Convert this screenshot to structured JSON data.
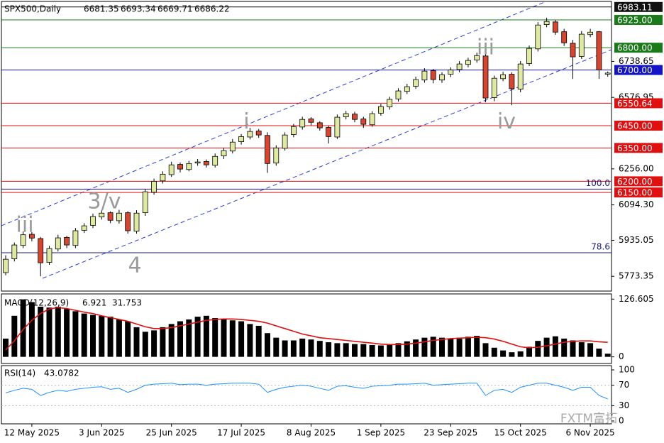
{
  "chart_data": [
    {
      "type": "candlestick",
      "title": "SPX500,Daily",
      "header_values": [
        6681.35,
        6693.34,
        6669.71,
        6686.22
      ],
      "x_ticks": [
        {
          "value": 3,
          "label": "12 May 2025"
        },
        {
          "value": 11,
          "label": "3 Jun 2025"
        },
        {
          "value": 19,
          "label": "25 Jun 2025"
        },
        {
          "value": 27,
          "label": "17 Jul 2025"
        },
        {
          "value": 35,
          "label": "8 Aug 2025"
        },
        {
          "value": 43,
          "label": "1 Sep 2025"
        },
        {
          "value": 51,
          "label": "23 Sep 2025"
        },
        {
          "value": 59,
          "label": "15 Oct 2025"
        },
        {
          "value": 67,
          "label": "6 Nov 2025"
        }
      ],
      "open": [
        5790,
        5852,
        5912,
        5962,
        5943,
        5836,
        5896,
        5948,
        5912,
        5980,
        6002,
        6040,
        6059,
        6023,
        6059,
        5976,
        6059,
        6151,
        6202,
        6230,
        6276,
        6253,
        6282,
        6289,
        6272,
        6314,
        6336,
        6378,
        6399,
        6426,
        6406,
        6282,
        6348,
        6410,
        6444,
        6480,
        6463,
        6442,
        6399,
        6490,
        6502,
        6480,
        6454,
        6506,
        6534,
        6570,
        6604,
        6627,
        6655,
        6697,
        6655,
        6681,
        6702,
        6725,
        6745,
        6763,
        6576,
        6661,
        6681,
        6614,
        6729,
        6795,
        6904,
        6916,
        6872,
        6820,
        6761,
        6859,
        6872,
        6681.35
      ],
      "high": [
        5868,
        5925,
        5975,
        5972,
        5950,
        5910,
        5960,
        5955,
        5990,
        6012,
        6055,
        6070,
        6065,
        6072,
        6066,
        6070,
        6165,
        6212,
        6245,
        6288,
        6285,
        6292,
        6300,
        6298,
        6325,
        6350,
        6390,
        6412,
        6440,
        6435,
        6420,
        6362,
        6420,
        6458,
        6490,
        6488,
        6470,
        6450,
        6500,
        6516,
        6512,
        6490,
        6515,
        6548,
        6580,
        6618,
        6638,
        6670,
        6708,
        6705,
        6690,
        6712,
        6740,
        6755,
        6778,
        6780,
        6675,
        6692,
        6690,
        6740,
        6810,
        6915,
        6935,
        6925,
        6885,
        6835,
        6875,
        6885,
        6875,
        6693.34
      ],
      "low": [
        5778,
        5840,
        5900,
        5930,
        5773,
        5825,
        5885,
        5900,
        5900,
        5968,
        5990,
        6028,
        6012,
        6010,
        5965,
        5965,
        6045,
        6140,
        6190,
        6220,
        6240,
        6245,
        6270,
        6262,
        6262,
        6300,
        6325,
        6365,
        6388,
        6395,
        6238,
        6270,
        6338,
        6398,
        6432,
        6452,
        6428,
        6370,
        6390,
        6478,
        6465,
        6440,
        6445,
        6495,
        6522,
        6558,
        6592,
        6615,
        6643,
        6640,
        6642,
        6668,
        6690,
        6712,
        6733,
        6555,
        6560,
        6650,
        6542,
        6600,
        6718,
        6783,
        6892,
        6858,
        6808,
        6660,
        6750,
        6847,
        6660,
        6669.71
      ],
      "close": [
        5850,
        5914,
        5960,
        5945,
        5834,
        5898,
        5946,
        5914,
        5978,
        6000,
        6042,
        6057,
        6025,
        6057,
        5978,
        6057,
        6153,
        6200,
        6232,
        6274,
        6255,
        6280,
        6287,
        6274,
        6312,
        6338,
        6376,
        6401,
        6424,
        6408,
        6280,
        6350,
        6408,
        6446,
        6478,
        6465,
        6440,
        6401,
        6488,
        6504,
        6478,
        6456,
        6504,
        6536,
        6568,
        6606,
        6625,
        6657,
        6695,
        6657,
        6679,
        6700,
        6727,
        6743,
        6765,
        6574,
        6663,
        6679,
        6616,
        6727,
        6797,
        6902,
        6918,
        6870,
        6822,
        6759,
        6861,
        6870,
        6700,
        6686.22
      ],
      "up_color": "#dfeaa0",
      "down_color": "#d9442e",
      "ylim": [
        5707,
        7008
      ],
      "yticks": [
        6738.65,
        6576.95,
        {
          "value": 6256,
          "label": "6256.00"
        },
        {
          "value": 6094.3,
          "label": "6094.30"
        },
        5935.05,
        5773.35
      ],
      "levels": [
        {
          "value": 6983.11,
          "color": "#111111"
        },
        {
          "value": 6925,
          "label": "6925.00",
          "color": "#1a7a1a"
        },
        {
          "value": 6800,
          "label": "6800.00",
          "color": "#1a7a1a"
        },
        {
          "value": 6700,
          "label": "6700.00",
          "color": "#1414c8"
        },
        {
          "value": 6550.64,
          "color": "#e01010"
        },
        {
          "value": 6450,
          "label": "6450.00",
          "color": "#e01010"
        },
        {
          "value": 6350,
          "label": "6350.00",
          "color": "#e01010"
        },
        {
          "value": 6200,
          "label": "6200.00",
          "color": "#e01010"
        },
        {
          "value": 6150,
          "label": "6150.00",
          "color": "#e01010"
        }
      ],
      "fib_levels": [
        {
          "value": 6165,
          "label": "100.0"
        },
        {
          "value": 5879,
          "label": "78.6"
        }
      ],
      "fib_color": "#1a1a80",
      "waves": [
        {
          "label": "iii",
          "x": 2.2,
          "value": 6000
        },
        {
          "label": "3/v",
          "x": 11.3,
          "value": 6105
        },
        {
          "label": "4",
          "x": 14.8,
          "value": 5818
        },
        {
          "label": "i",
          "x": 27.6,
          "value": 6465
        },
        {
          "label": "iii",
          "x": 55,
          "value": 6797
        },
        {
          "label": "iv",
          "x": 57.4,
          "value": 6465
        }
      ]
    },
    {
      "type": "macd",
      "title": "MACD(12,26,9)",
      "macd_value": 6.921,
      "signal_value": 31.753,
      "histogram": [
        40,
        90,
        126,
        120,
        110,
        108,
        110,
        105,
        100,
        95,
        92,
        90,
        88,
        82,
        78,
        65,
        55,
        58,
        65,
        72,
        78,
        82,
        88,
        90,
        85,
        82,
        80,
        78,
        72,
        68,
        52,
        42,
        36,
        36,
        40,
        38,
        35,
        32,
        30,
        30,
        28,
        28,
        26,
        25,
        26,
        30,
        34,
        38,
        42,
        44,
        42,
        40,
        42,
        44,
        46,
        30,
        20,
        14,
        10,
        12,
        22,
        35,
        42,
        45,
        40,
        36,
        32,
        30,
        18,
        6.921
      ],
      "signal": [
        15,
        35,
        60,
        80,
        95,
        105,
        108,
        106,
        102,
        98,
        95,
        90,
        86,
        82,
        78,
        72,
        66,
        62,
        62,
        64,
        68,
        72,
        76,
        80,
        82,
        83,
        83,
        82,
        80,
        78,
        74,
        68,
        62,
        56,
        50,
        46,
        42,
        40,
        38,
        36,
        34,
        32,
        30,
        28,
        27,
        27,
        28,
        30,
        33,
        36,
        38,
        40,
        41,
        42,
        43,
        42,
        39,
        34,
        28,
        22,
        20,
        21,
        24,
        28,
        32,
        34,
        35,
        35,
        33,
        31.753
      ],
      "bar_color": "#000000",
      "signal_color": "#e01010",
      "ylim": [
        -14.6,
        138
      ],
      "yticks": [
        126.605,
        0
      ]
    },
    {
      "type": "rsi",
      "title": "RSI(14)",
      "value": 43.0782,
      "values": [
        55,
        60,
        64,
        62,
        50,
        56,
        60,
        58,
        62,
        64,
        66,
        67,
        62,
        64,
        56,
        62,
        70,
        72,
        73,
        74,
        71,
        72,
        72,
        70,
        72,
        73,
        74,
        74,
        74,
        72,
        56,
        62,
        66,
        68,
        70,
        68,
        64,
        60,
        68,
        69,
        66,
        64,
        68,
        69,
        70,
        72,
        72,
        73,
        74,
        70,
        71,
        72,
        73,
        74,
        74,
        50,
        60,
        62,
        56,
        66,
        70,
        74,
        74,
        70,
        66,
        60,
        66,
        66,
        50,
        43.0782
      ],
      "color": "#1e90ff",
      "ylim": [
        -5.6,
        108.4
      ],
      "yticks": [
        100,
        70,
        30,
        0
      ],
      "levels": [
        70,
        30
      ]
    }
  ],
  "watermark": "FXTM富拓"
}
